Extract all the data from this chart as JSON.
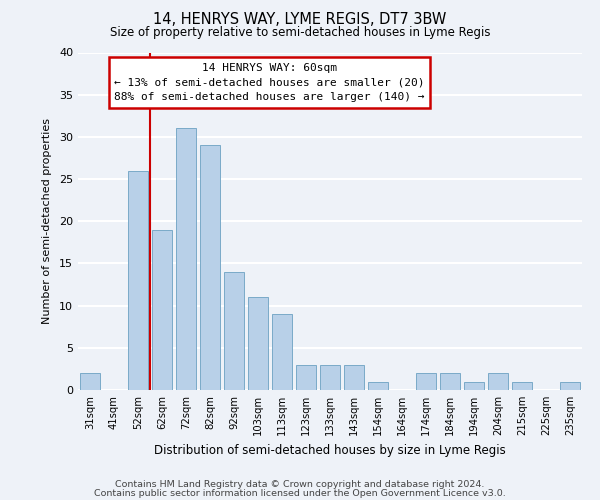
{
  "title": "14, HENRYS WAY, LYME REGIS, DT7 3BW",
  "subtitle": "Size of property relative to semi-detached houses in Lyme Regis",
  "xlabel": "Distribution of semi-detached houses by size in Lyme Regis",
  "ylabel": "Number of semi-detached properties",
  "categories": [
    "31sqm",
    "41sqm",
    "52sqm",
    "62sqm",
    "72sqm",
    "82sqm",
    "92sqm",
    "103sqm",
    "113sqm",
    "123sqm",
    "133sqm",
    "143sqm",
    "154sqm",
    "164sqm",
    "174sqm",
    "184sqm",
    "194sqm",
    "204sqm",
    "215sqm",
    "225sqm",
    "235sqm"
  ],
  "values": [
    2,
    0,
    26,
    19,
    31,
    29,
    14,
    11,
    9,
    3,
    3,
    3,
    1,
    0,
    2,
    2,
    1,
    2,
    1,
    0,
    1
  ],
  "bar_color": "#b8d0e8",
  "bar_edge_color": "#7aaac8",
  "annotation_title": "14 HENRYS WAY: 60sqm",
  "annotation_line1": "← 13% of semi-detached houses are smaller (20)",
  "annotation_line2": "88% of semi-detached houses are larger (140) →",
  "annotation_box_facecolor": "#ffffff",
  "annotation_box_edgecolor": "#cc0000",
  "vline_color": "#cc0000",
  "vline_x": 2.5,
  "ylim": [
    0,
    40
  ],
  "yticks": [
    0,
    5,
    10,
    15,
    20,
    25,
    30,
    35,
    40
  ],
  "bg_color": "#eef2f8",
  "grid_color": "#ffffff",
  "footer1": "Contains HM Land Registry data © Crown copyright and database right 2024.",
  "footer2": "Contains public sector information licensed under the Open Government Licence v3.0."
}
